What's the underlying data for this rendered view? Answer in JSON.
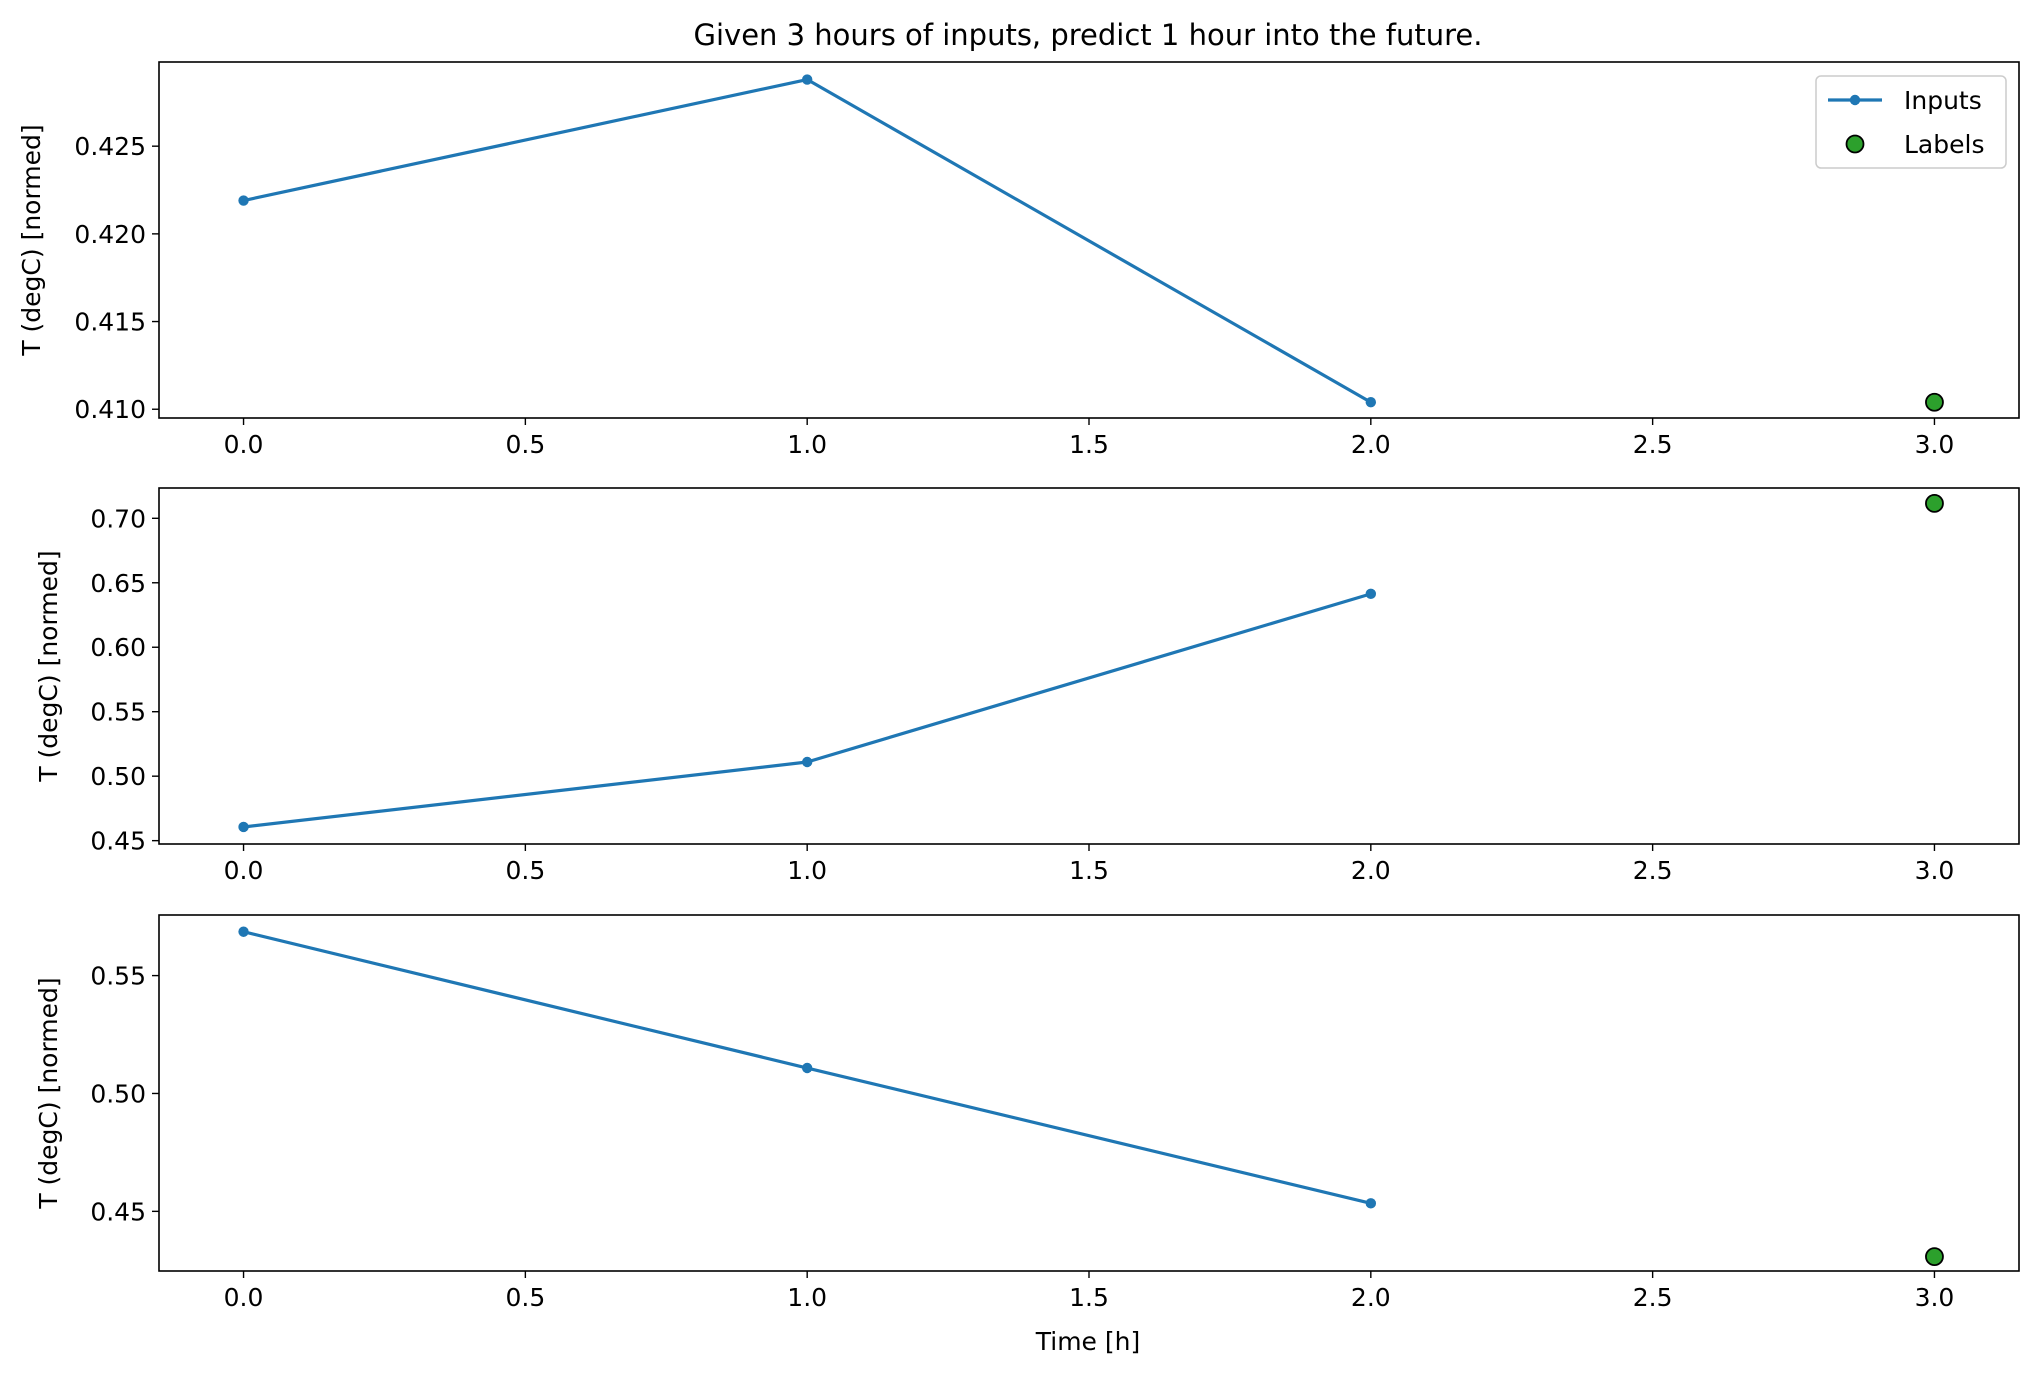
{
  "chart_data": {
    "type": "line",
    "title": "Given 3 hours of inputs, predict 1 hour into the future.",
    "xlabel": "Time [h]",
    "legend": {
      "placement": "top-right",
      "entries": [
        "Inputs",
        "Labels"
      ]
    },
    "colors": {
      "inputs": "#1f77b4",
      "labels": "#2ca02c",
      "label_edge": "#000000"
    },
    "grid": false,
    "subplots": [
      {
        "ylabel": "T (degC) [normed]",
        "xlim": [
          -0.15,
          3.15
        ],
        "ylim": [
          0.4095,
          0.4298
        ],
        "xticks": [
          "0.0",
          "0.5",
          "1.0",
          "1.5",
          "2.0",
          "2.5",
          "3.0"
        ],
        "yticks": [
          "0.410",
          "0.415",
          "0.420",
          "0.425"
        ],
        "series": [
          {
            "name": "Inputs",
            "kind": "line",
            "x": [
              0,
              1,
              2
            ],
            "y": [
              0.4219,
              0.4288,
              0.4104
            ]
          },
          {
            "name": "Labels",
            "kind": "scatter",
            "x": [
              3
            ],
            "y": [
              0.4104
            ]
          }
        ]
      },
      {
        "ylabel": "T (degC) [normed]",
        "xlim": [
          -0.15,
          3.15
        ],
        "ylim": [
          0.4474,
          0.7235
        ],
        "xticks": [
          "0.0",
          "0.5",
          "1.0",
          "1.5",
          "2.0",
          "2.5",
          "3.0"
        ],
        "yticks": [
          "0.45",
          "0.50",
          "0.55",
          "0.60",
          "0.65",
          "0.70"
        ],
        "series": [
          {
            "name": "Inputs",
            "kind": "line",
            "x": [
              0,
              1,
              2
            ],
            "y": [
              0.4606,
              0.511,
              0.6414
            ]
          },
          {
            "name": "Labels",
            "kind": "scatter",
            "x": [
              3
            ],
            "y": [
              0.7116
            ]
          }
        ]
      },
      {
        "ylabel": "T (degC) [normed]",
        "xlim": [
          -0.15,
          3.15
        ],
        "ylim": [
          0.4247,
          0.5757
        ],
        "xticks": [
          "0.0",
          "0.5",
          "1.0",
          "1.5",
          "2.0",
          "2.5",
          "3.0"
        ],
        "yticks": [
          "0.45",
          "0.50",
          "0.55"
        ],
        "series": [
          {
            "name": "Inputs",
            "kind": "line",
            "x": [
              0,
              1,
              2
            ],
            "y": [
              0.5686,
              0.5108,
              0.4534
            ]
          },
          {
            "name": "Labels",
            "kind": "scatter",
            "x": [
              3
            ],
            "y": [
              0.4308
            ]
          }
        ]
      }
    ]
  }
}
